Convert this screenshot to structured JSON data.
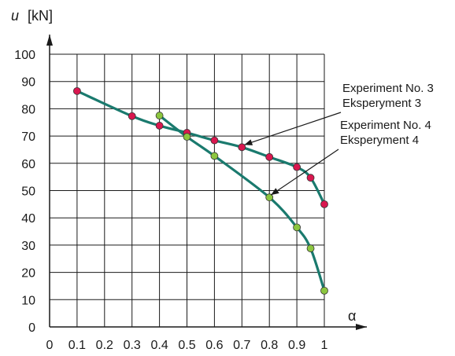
{
  "chart_data": {
    "type": "line",
    "title": "",
    "ylabel_var": "u",
    "ylabel_unit": "[kN]",
    "xlabel": "α",
    "xlim": [
      0,
      1
    ],
    "ylim": [
      0,
      100
    ],
    "x_ticks": [
      "0",
      "0.1",
      "0.2",
      "0.3",
      "0.4",
      "0.5",
      "0.6",
      "0.7",
      "0.8",
      "0.9",
      "1"
    ],
    "y_ticks": [
      "0",
      "10",
      "20",
      "30",
      "40",
      "50",
      "60",
      "70",
      "80",
      "90",
      "100"
    ],
    "grid": true,
    "series": [
      {
        "x": [
          0.1,
          0.3,
          0.4,
          0.5,
          0.6,
          0.7,
          0.8,
          0.9,
          0.95,
          1.0
        ],
        "y": [
          86.5,
          77.3,
          73.8,
          71.2,
          68.4,
          65.9,
          62.3,
          58.6,
          54.7,
          45.0
        ],
        "color": "#d9174f"
      },
      {
        "x": [
          0.4,
          0.5,
          0.6,
          0.8,
          0.9,
          0.95,
          1.0
        ],
        "y": [
          77.5,
          69.7,
          62.7,
          47.5,
          36.5,
          28.8,
          13.3
        ],
        "color": "#8cc63f"
      }
    ],
    "line_color": "#1a7a6e",
    "annotations": [
      {
        "line1": "Experiment No. 3",
        "line2": "Eksperyment 3",
        "target_series": 0
      },
      {
        "line1": "Experiment No. 4",
        "line2": "Eksperyment 4",
        "target_series": 1
      }
    ]
  }
}
